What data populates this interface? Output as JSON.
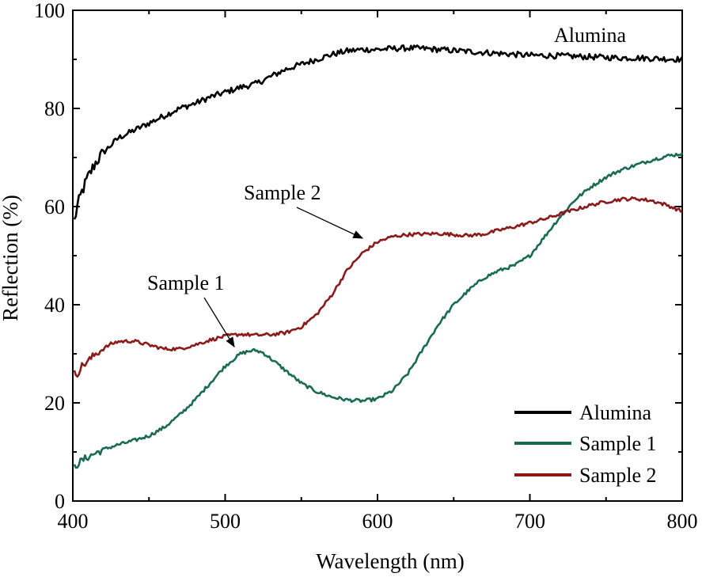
{
  "chart_data": {
    "type": "line",
    "title": "",
    "xlabel": "Wavelength (nm)",
    "ylabel": "Reflection (%)",
    "xlim": [
      400,
      800
    ],
    "ylim": [
      0,
      100
    ],
    "xticks": [
      400,
      500,
      600,
      700,
      800
    ],
    "yticks": [
      0,
      20,
      40,
      60,
      80,
      100
    ],
    "x_tick_labels": [
      "400",
      "500",
      "600",
      "700",
      "800"
    ],
    "y_tick_labels": [
      "0",
      "20",
      "40",
      "60",
      "80",
      "100"
    ],
    "series": [
      {
        "name": "Alumina",
        "color": "#000000",
        "noise": 0.6,
        "points": [
          [
            401,
            57
          ],
          [
            403,
            60
          ],
          [
            406,
            63
          ],
          [
            410,
            66
          ],
          [
            415,
            69
          ],
          [
            420,
            71
          ],
          [
            425,
            72.5
          ],
          [
            430,
            74
          ],
          [
            440,
            75.5
          ],
          [
            450,
            77
          ],
          [
            460,
            78.5
          ],
          [
            470,
            80
          ],
          [
            480,
            81
          ],
          [
            490,
            82.3
          ],
          [
            500,
            83.3
          ],
          [
            510,
            84.3
          ],
          [
            520,
            85
          ],
          [
            530,
            86.5
          ],
          [
            540,
            88
          ],
          [
            550,
            89
          ],
          [
            560,
            90
          ],
          [
            570,
            91
          ],
          [
            580,
            91.7
          ],
          [
            590,
            92
          ],
          [
            600,
            92
          ],
          [
            610,
            92.2
          ],
          [
            620,
            92.3
          ],
          [
            630,
            92.2
          ],
          [
            640,
            92
          ],
          [
            650,
            91.8
          ],
          [
            660,
            91.6
          ],
          [
            670,
            91.4
          ],
          [
            680,
            91.2
          ],
          [
            690,
            91
          ],
          [
            700,
            90.8
          ],
          [
            710,
            90.8
          ],
          [
            720,
            90.7
          ],
          [
            730,
            90.6
          ],
          [
            740,
            90.5
          ],
          [
            750,
            90.4
          ],
          [
            760,
            90.3
          ],
          [
            770,
            90.3
          ],
          [
            780,
            90.2
          ],
          [
            790,
            90.1
          ],
          [
            800,
            90
          ]
        ]
      },
      {
        "name": "Sample 1",
        "color": "#1a6b52",
        "noise": 0.35,
        "points": [
          [
            401,
            7
          ],
          [
            405,
            8
          ],
          [
            410,
            9
          ],
          [
            420,
            10.5
          ],
          [
            430,
            11.5
          ],
          [
            440,
            12.3
          ],
          [
            450,
            13.3
          ],
          [
            460,
            15
          ],
          [
            470,
            17.5
          ],
          [
            480,
            20.5
          ],
          [
            490,
            24
          ],
          [
            500,
            27.5
          ],
          [
            510,
            30
          ],
          [
            515,
            30.5
          ],
          [
            520,
            30.7
          ],
          [
            525,
            30.2
          ],
          [
            530,
            29
          ],
          [
            540,
            26.5
          ],
          [
            550,
            24
          ],
          [
            560,
            22.3
          ],
          [
            570,
            21.2
          ],
          [
            580,
            20.6
          ],
          [
            590,
            20.4
          ],
          [
            600,
            20.8
          ],
          [
            610,
            22.5
          ],
          [
            620,
            26
          ],
          [
            630,
            31
          ],
          [
            640,
            36
          ],
          [
            650,
            40
          ],
          [
            660,
            43
          ],
          [
            670,
            45.5
          ],
          [
            680,
            47
          ],
          [
            690,
            48
          ],
          [
            700,
            50
          ],
          [
            710,
            54
          ],
          [
            720,
            58
          ],
          [
            730,
            61.5
          ],
          [
            740,
            64
          ],
          [
            750,
            66
          ],
          [
            760,
            67.5
          ],
          [
            770,
            68.5
          ],
          [
            780,
            69.5
          ],
          [
            790,
            70.3
          ],
          [
            800,
            70.8
          ]
        ]
      },
      {
        "name": "Sample 2",
        "color": "#8b1a1a",
        "noise": 0.35,
        "points": [
          [
            401,
            26
          ],
          [
            403,
            26
          ],
          [
            406,
            27.5
          ],
          [
            410,
            28.5
          ],
          [
            415,
            30
          ],
          [
            420,
            31
          ],
          [
            425,
            32
          ],
          [
            430,
            32.5
          ],
          [
            440,
            32.6
          ],
          [
            450,
            31.8
          ],
          [
            460,
            31
          ],
          [
            470,
            31
          ],
          [
            480,
            31.8
          ],
          [
            490,
            32.8
          ],
          [
            500,
            33.6
          ],
          [
            510,
            34
          ],
          [
            520,
            33.8
          ],
          [
            530,
            33.9
          ],
          [
            540,
            34.3
          ],
          [
            550,
            35.5
          ],
          [
            560,
            38
          ],
          [
            570,
            42
          ],
          [
            580,
            47
          ],
          [
            590,
            50.5
          ],
          [
            600,
            52.8
          ],
          [
            610,
            53.9
          ],
          [
            620,
            54.3
          ],
          [
            630,
            54.4
          ],
          [
            640,
            54.5
          ],
          [
            650,
            54.3
          ],
          [
            660,
            54.1
          ],
          [
            670,
            54.4
          ],
          [
            680,
            55.2
          ],
          [
            690,
            55.9
          ],
          [
            700,
            56.7
          ],
          [
            710,
            57.5
          ],
          [
            720,
            58.5
          ],
          [
            730,
            59.4
          ],
          [
            740,
            60.3
          ],
          [
            750,
            61
          ],
          [
            760,
            61.5
          ],
          [
            770,
            61.6
          ],
          [
            780,
            61.2
          ],
          [
            790,
            60.3
          ],
          [
            800,
            59
          ]
        ]
      }
    ],
    "annotations": [
      {
        "id": "ann-alumina",
        "text": "Alumina"
      },
      {
        "id": "ann-sample2",
        "text": "Sample 2"
      },
      {
        "id": "ann-sample1",
        "text": "Sample 1"
      }
    ],
    "legend": {
      "position": "bottom-right",
      "entries": [
        "Alumina",
        "Sample 1",
        "Sample 2"
      ]
    }
  }
}
